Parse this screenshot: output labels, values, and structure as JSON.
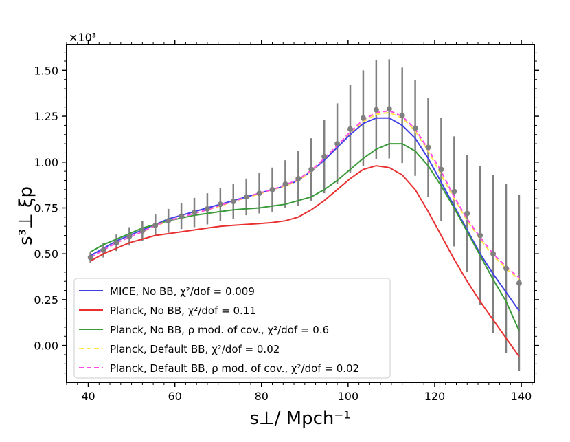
{
  "chart_data": {
    "type": "line",
    "title": "",
    "xlabel": "s⊥/  Mpch⁻¹",
    "ylabel": "s³⊥ ξp",
    "y_scale_label": "×10³",
    "xlim": [
      35,
      143
    ],
    "ylim": [
      -0.2,
      1.64
    ],
    "x_ticks": [
      40,
      60,
      80,
      100,
      120,
      140
    ],
    "x_tick_labels": [
      "40",
      "60",
      "80",
      "100",
      "120",
      "140"
    ],
    "y_ticks": [
      0.0,
      0.25,
      0.5,
      0.75,
      1.0,
      1.25,
      1.5
    ],
    "y_tick_labels": [
      "0.00",
      "0.25",
      "0.50",
      "0.75",
      "1.00",
      "1.25",
      "1.50"
    ],
    "legend_position": "lower-left",
    "x": [
      40.5,
      43.5,
      46.5,
      49.5,
      52.5,
      55.5,
      58.5,
      61.5,
      64.5,
      67.5,
      70.5,
      73.5,
      76.5,
      79.5,
      82.5,
      85.5,
      88.5,
      91.5,
      94.5,
      97.5,
      100.5,
      103.5,
      106.5,
      109.5,
      112.5,
      115.5,
      118.5,
      121.5,
      124.5,
      127.5,
      130.5,
      133.5,
      136.5,
      139.5
    ],
    "series": [
      {
        "name": "MICE, No BB",
        "chi2_label": "χ²/dof = 0.009",
        "color": "#4040e8",
        "dash": "solid",
        "values": [
          0.49,
          0.53,
          0.57,
          0.6,
          0.63,
          0.66,
          0.69,
          0.71,
          0.73,
          0.75,
          0.77,
          0.79,
          0.81,
          0.83,
          0.85,
          0.87,
          0.9,
          0.95,
          1.01,
          1.08,
          1.15,
          1.21,
          1.24,
          1.24,
          1.2,
          1.13,
          1.02,
          0.89,
          0.76,
          0.63,
          0.5,
          0.39,
          0.29,
          0.19
        ]
      },
      {
        "name": "Planck, No BB",
        "chi2_label": "χ²/dof = 0.11",
        "color": "#e83030",
        "dash": "solid",
        "values": [
          0.46,
          0.5,
          0.53,
          0.56,
          0.58,
          0.6,
          0.61,
          0.62,
          0.63,
          0.64,
          0.65,
          0.655,
          0.66,
          0.665,
          0.67,
          0.68,
          0.7,
          0.74,
          0.79,
          0.85,
          0.91,
          0.96,
          0.98,
          0.97,
          0.93,
          0.85,
          0.73,
          0.6,
          0.47,
          0.35,
          0.24,
          0.14,
          0.04,
          -0.06
        ]
      },
      {
        "name": "Planck, No BB,  ρ mod. of cov.",
        "chi2_label": "χ²/dof = 0.6",
        "color": "#3a9a3a",
        "dash": "solid",
        "values": [
          0.51,
          0.55,
          0.58,
          0.61,
          0.64,
          0.66,
          0.68,
          0.695,
          0.71,
          0.72,
          0.73,
          0.74,
          0.745,
          0.75,
          0.76,
          0.77,
          0.79,
          0.81,
          0.85,
          0.9,
          0.96,
          1.02,
          1.07,
          1.1,
          1.1,
          1.06,
          0.98,
          0.87,
          0.75,
          0.62,
          0.49,
          0.36,
          0.24,
          0.08
        ]
      },
      {
        "name": "Planck, Default BB",
        "chi2_label": "χ²/dof = 0.02",
        "color": "#ffe44a",
        "dash": "dashed",
        "values": [
          0.48,
          0.52,
          0.56,
          0.59,
          0.62,
          0.65,
          0.68,
          0.7,
          0.72,
          0.74,
          0.76,
          0.785,
          0.805,
          0.825,
          0.85,
          0.87,
          0.9,
          0.95,
          1.02,
          1.09,
          1.16,
          1.22,
          1.26,
          1.27,
          1.24,
          1.17,
          1.06,
          0.93,
          0.8,
          0.68,
          0.58,
          0.49,
          0.42,
          0.36
        ]
      },
      {
        "name": "Planck, Default BB, ρ mod. of cov.",
        "chi2_label": "χ²/dof = 0.02",
        "color": "#ff4de8",
        "dash": "dashed",
        "values": [
          0.48,
          0.52,
          0.56,
          0.59,
          0.62,
          0.655,
          0.68,
          0.7,
          0.72,
          0.74,
          0.765,
          0.785,
          0.81,
          0.83,
          0.85,
          0.875,
          0.905,
          0.955,
          1.02,
          1.09,
          1.165,
          1.23,
          1.27,
          1.28,
          1.25,
          1.18,
          1.07,
          0.95,
          0.81,
          0.69,
          0.59,
          0.5,
          0.43,
          0.37
        ]
      }
    ],
    "data_points": {
      "name": "measurement",
      "color": "#808080",
      "x": [
        40.5,
        43.5,
        46.5,
        49.5,
        52.5,
        55.5,
        58.5,
        61.5,
        64.5,
        67.5,
        70.5,
        73.5,
        76.5,
        79.5,
        82.5,
        85.5,
        88.5,
        91.5,
        94.5,
        97.5,
        100.5,
        103.5,
        106.5,
        109.5,
        112.5,
        115.5,
        118.5,
        121.5,
        124.5,
        127.5,
        130.5,
        133.5,
        136.5,
        139.5
      ],
      "y": [
        0.48,
        0.52,
        0.56,
        0.595,
        0.625,
        0.655,
        0.68,
        0.705,
        0.725,
        0.745,
        0.77,
        0.785,
        0.81,
        0.83,
        0.85,
        0.88,
        0.91,
        0.96,
        1.03,
        1.1,
        1.18,
        1.24,
        1.285,
        1.29,
        1.255,
        1.185,
        1.08,
        0.96,
        0.84,
        0.72,
        0.6,
        0.5,
        0.42,
        0.34
      ],
      "err": [
        0.03,
        0.04,
        0.045,
        0.05,
        0.055,
        0.06,
        0.065,
        0.07,
        0.08,
        0.085,
        0.09,
        0.095,
        0.1,
        0.11,
        0.12,
        0.13,
        0.15,
        0.17,
        0.2,
        0.22,
        0.24,
        0.26,
        0.27,
        0.27,
        0.26,
        0.26,
        0.27,
        0.28,
        0.3,
        0.32,
        0.38,
        0.43,
        0.46,
        0.48
      ]
    }
  }
}
